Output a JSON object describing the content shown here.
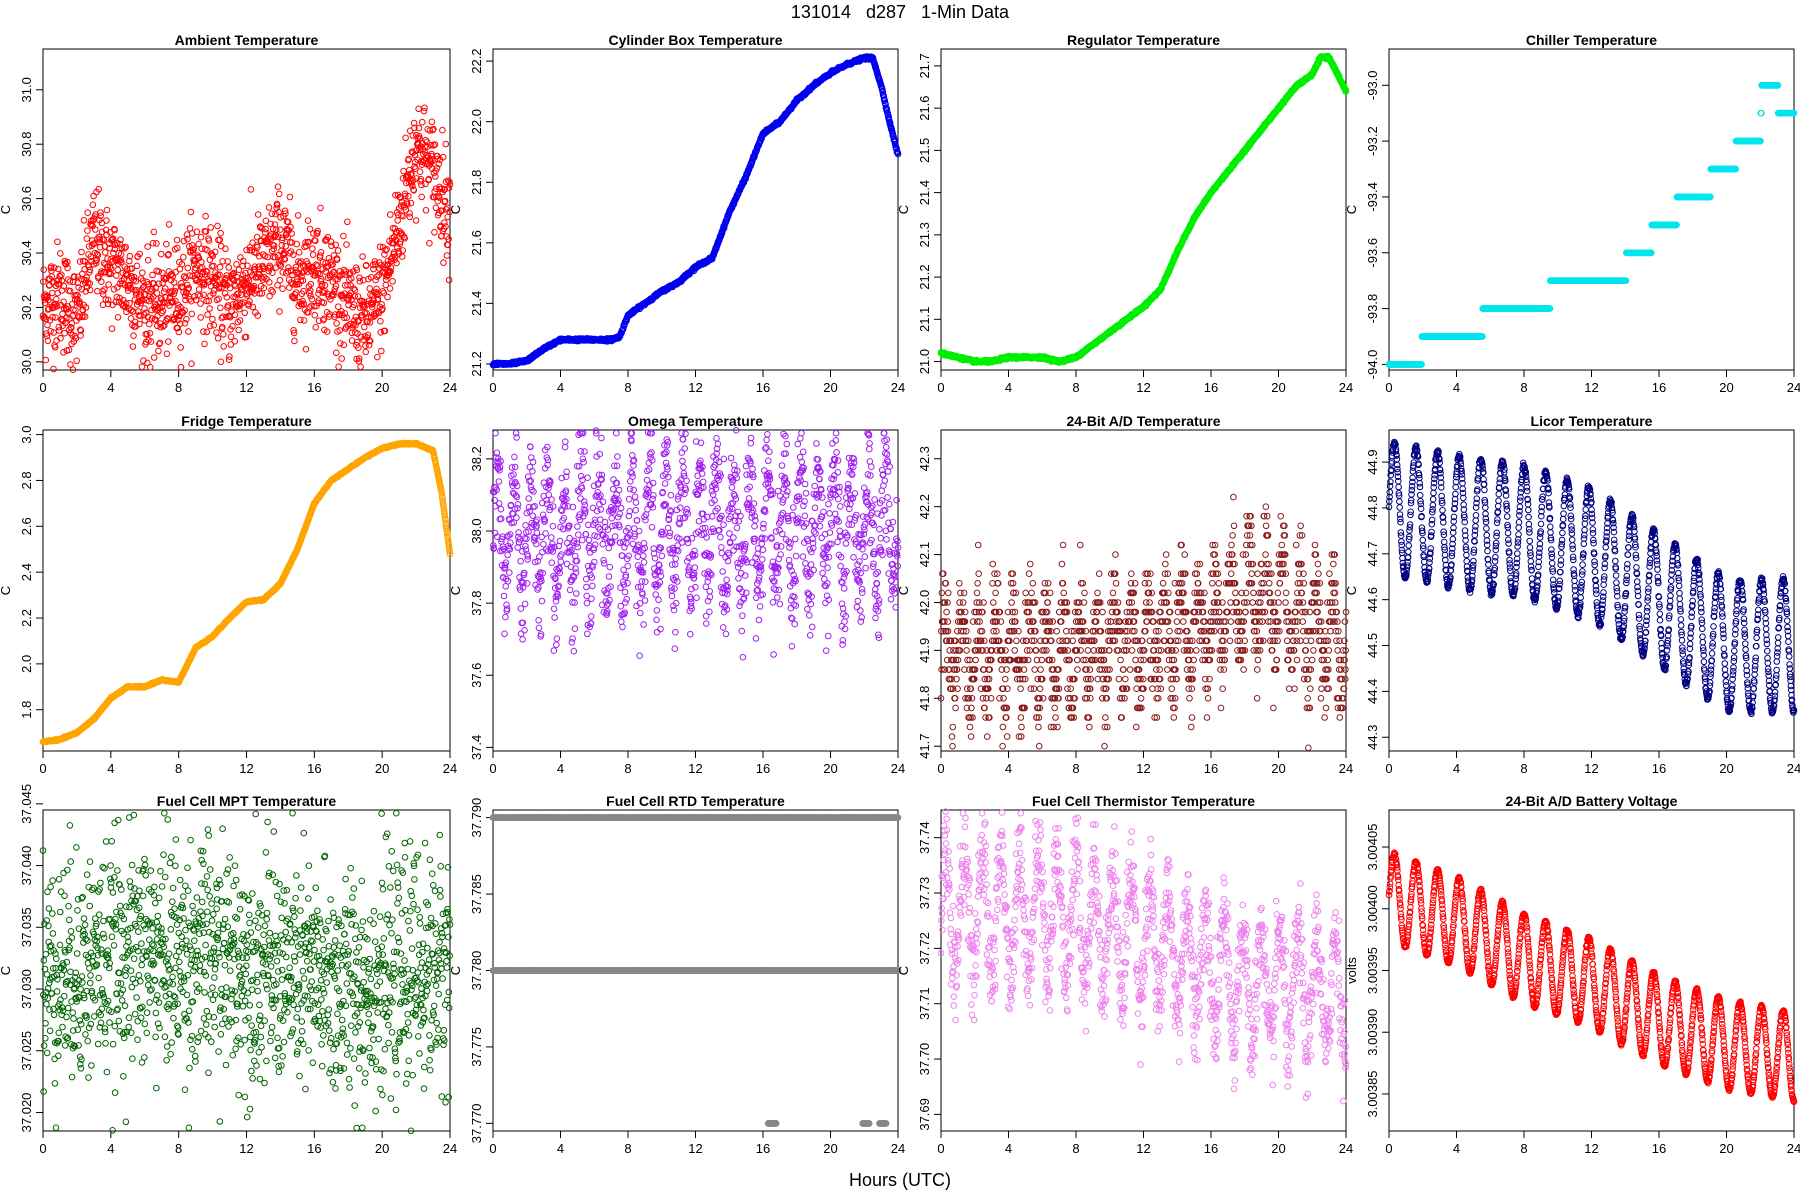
{
  "figure": {
    "title": "131014   d287   1-Min Data",
    "xlabel": "Hours (UTC)"
  },
  "chart_data": [
    {
      "type": "scatter",
      "title": "Ambient Temperature",
      "ylabel": "C",
      "color": "#ff0000",
      "xlim": [
        0,
        24
      ],
      "ylim": [
        29.97,
        31.15
      ],
      "xticks": [
        0,
        4,
        8,
        12,
        16,
        20,
        24
      ],
      "yticks": [
        30.0,
        30.2,
        30.4,
        30.6,
        30.8,
        31.0
      ],
      "ytick_decimals": 1,
      "x": [
        0,
        1,
        2,
        3,
        4,
        5,
        6,
        7,
        8,
        9,
        10,
        11,
        12,
        13,
        14,
        15,
        16,
        17,
        18,
        19,
        20,
        21,
        22,
        23,
        24
      ],
      "y": [
        30.2,
        30.25,
        30.15,
        30.45,
        30.35,
        30.3,
        30.2,
        30.22,
        30.25,
        30.35,
        30.3,
        30.2,
        30.3,
        30.35,
        30.45,
        30.3,
        30.35,
        30.3,
        30.2,
        30.15,
        30.25,
        30.5,
        30.8,
        30.7,
        30.55
      ],
      "spread": 0.28,
      "n": 1440
    },
    {
      "type": "scatter",
      "title": "Cylinder Box Temperature",
      "ylabel": "C",
      "color": "#0000ee",
      "xlim": [
        0,
        24
      ],
      "ylim": [
        21.18,
        22.24
      ],
      "xticks": [
        0,
        4,
        8,
        12,
        16,
        20,
        24
      ],
      "yticks": [
        21.2,
        21.4,
        21.6,
        21.8,
        22.0,
        22.2
      ],
      "ytick_decimals": 1,
      "x": [
        0,
        1,
        2,
        3,
        4,
        5,
        6,
        7,
        7.5,
        8,
        9,
        10,
        11,
        12,
        13,
        14,
        15,
        16,
        17,
        18,
        19,
        20,
        21,
        22,
        22.5,
        23,
        23.5,
        24
      ],
      "y": [
        21.2,
        21.2,
        21.21,
        21.25,
        21.28,
        21.28,
        21.28,
        21.28,
        21.29,
        21.36,
        21.4,
        21.44,
        21.47,
        21.52,
        21.55,
        21.7,
        21.82,
        21.96,
        22.0,
        22.07,
        22.12,
        22.16,
        22.19,
        22.21,
        22.21,
        22.12,
        22.0,
        21.89
      ],
      "spread": 0.006,
      "n": 1440
    },
    {
      "type": "scatter",
      "title": "Regulator Temperature",
      "ylabel": "C",
      "color": "#00ee00",
      "xlim": [
        0,
        24
      ],
      "ylim": [
        20.98,
        21.74
      ],
      "xticks": [
        0,
        4,
        8,
        12,
        16,
        20,
        24
      ],
      "yticks": [
        21.0,
        21.1,
        21.2,
        21.3,
        21.4,
        21.5,
        21.6,
        21.7
      ],
      "ytick_decimals": 1,
      "x": [
        0,
        1,
        2,
        3,
        4,
        5,
        6,
        7,
        8,
        9,
        10,
        11,
        12,
        13,
        14,
        15,
        16,
        17,
        18,
        19,
        20,
        21,
        22,
        22.5,
        23,
        23.5,
        24
      ],
      "y": [
        21.02,
        21.01,
        21.0,
        21.0,
        21.01,
        21.01,
        21.01,
        21.0,
        21.01,
        21.04,
        21.07,
        21.1,
        21.13,
        21.17,
        21.26,
        21.34,
        21.4,
        21.45,
        21.5,
        21.55,
        21.6,
        21.65,
        21.68,
        21.72,
        21.72,
        21.68,
        21.64
      ],
      "spread": 0.004,
      "n": 1440
    },
    {
      "type": "scatter",
      "title": "Chiller Temperature",
      "ylabel": "C",
      "color": "#00e5ee",
      "xlim": [
        0,
        24
      ],
      "ylim": [
        -94.02,
        -92.87
      ],
      "xticks": [
        0,
        4,
        8,
        12,
        16,
        20,
        24
      ],
      "yticks": [
        -94.0,
        -93.8,
        -93.6,
        -93.4,
        -93.2,
        -93.0
      ],
      "ytick_decimals": 1,
      "x": [
        0,
        1.9,
        2.0,
        4.0,
        4.1,
        5.5,
        5.6,
        8.0,
        8.1,
        11.0,
        11.1,
        14.0,
        14.1,
        15.5,
        15.6,
        17.0,
        17.1,
        19.0,
        19.1,
        20.5,
        20.6,
        22.0,
        22.1,
        24.0
      ],
      "y": [
        -94.0,
        -94.0,
        -93.9,
        -93.9,
        -93.9,
        -93.9,
        -93.8,
        -93.8,
        -93.8,
        -93.7,
        -93.7,
        -93.7,
        -93.6,
        -93.6,
        -93.5,
        -93.5,
        -93.4,
        -93.4,
        -93.3,
        -93.3,
        -93.2,
        -93.2,
        -93.0,
        -93.1
      ],
      "spread": 0.0,
      "quantize": 0.1,
      "n": 1440
    },
    {
      "type": "scatter",
      "title": "Fridge Temperature",
      "ylabel": "C",
      "color": "#ffa500",
      "xlim": [
        0,
        24
      ],
      "ylim": [
        1.62,
        3.02
      ],
      "xticks": [
        0,
        4,
        8,
        12,
        16,
        20,
        24
      ],
      "yticks": [
        1.8,
        2.0,
        2.2,
        2.4,
        2.6,
        2.8,
        3.0
      ],
      "ytick_decimals": 1,
      "x": [
        0,
        1,
        2,
        3,
        4,
        5,
        6,
        7,
        8,
        9,
        10,
        11,
        12,
        13,
        14,
        15,
        16,
        17,
        18,
        19,
        20,
        21,
        22,
        23,
        23.5,
        24
      ],
      "y": [
        1.66,
        1.67,
        1.7,
        1.76,
        1.85,
        1.9,
        1.9,
        1.93,
        1.92,
        2.07,
        2.12,
        2.2,
        2.27,
        2.28,
        2.35,
        2.5,
        2.7,
        2.8,
        2.85,
        2.9,
        2.94,
        2.96,
        2.96,
        2.93,
        2.75,
        2.48
      ],
      "spread": 0.004,
      "n": 1440
    },
    {
      "type": "scatter",
      "title": "Omega Temperature",
      "ylabel": "C",
      "color": "#a020f0",
      "xlim": [
        0,
        24
      ],
      "ylim": [
        37.39,
        38.28
      ],
      "xticks": [
        0,
        4,
        8,
        12,
        16,
        20,
        24
      ],
      "yticks": [
        37.4,
        37.6,
        37.8,
        38.0,
        38.2
      ],
      "ytick_decimals": 1,
      "x": [
        0,
        6,
        12,
        18,
        24
      ],
      "y": [
        37.98,
        37.99,
        38.0,
        38.0,
        38.0
      ],
      "spread": 0.23,
      "wave_amp": 0.18,
      "wave_period": 1.0,
      "n": 1440
    },
    {
      "type": "scatter",
      "title": "24-Bit A/D Temperature",
      "ylabel": "C",
      "color": "#8b1a1a",
      "xlim": [
        0,
        24
      ],
      "ylim": [
        41.69,
        42.36
      ],
      "xticks": [
        0,
        4,
        8,
        12,
        16,
        20,
        24
      ],
      "yticks": [
        41.7,
        41.8,
        41.9,
        42.0,
        42.1,
        42.2,
        42.3
      ],
      "ytick_decimals": 1,
      "x": [
        0,
        6,
        12,
        16,
        18,
        20,
        22,
        24
      ],
      "y": [
        41.9,
        41.9,
        41.92,
        41.95,
        42.0,
        42.0,
        41.95,
        41.92
      ],
      "spread": 0.16,
      "wave_amp": 0.1,
      "wave_period": 1.0,
      "quantize": 0.02,
      "n": 1440
    },
    {
      "type": "scatter",
      "title": "Licor Temperature",
      "ylabel": "C",
      "color": "#000080",
      "xlim": [
        0,
        24
      ],
      "ylim": [
        44.27,
        44.97
      ],
      "xticks": [
        0,
        4,
        8,
        12,
        16,
        20,
        24
      ],
      "yticks": [
        44.3,
        44.4,
        44.5,
        44.6,
        44.7,
        44.8,
        44.9
      ],
      "ytick_decimals": 1,
      "x": [
        0,
        4,
        8,
        12,
        16,
        20,
        24
      ],
      "y": [
        44.8,
        44.77,
        44.75,
        44.7,
        44.6,
        44.5,
        44.5
      ],
      "spread": 0.01,
      "wave_amp": 0.16,
      "wave_period": 1.28,
      "n": 1440
    },
    {
      "type": "scatter",
      "title": "Fuel Cell MPT Temperature",
      "ylabel": "C",
      "color": "#006400",
      "xlim": [
        0,
        24
      ],
      "ylim": [
        37.0185,
        37.0445
      ],
      "xticks": [
        0,
        4,
        8,
        12,
        16,
        20,
        24
      ],
      "yticks": [
        37.02,
        37.025,
        37.03,
        37.035,
        37.04,
        37.045
      ],
      "ytick_decimals": 3,
      "x": [
        0,
        6,
        12,
        18,
        24
      ],
      "y": [
        37.031,
        37.033,
        37.032,
        37.03,
        37.032
      ],
      "spread": 0.013,
      "n": 1440
    },
    {
      "type": "scatter",
      "title": "Fuel Cell RTD Temperature",
      "ylabel": "C",
      "color": "#888888",
      "xlim": [
        0,
        24
      ],
      "ylim": [
        37.7695,
        37.7905
      ],
      "xticks": [
        0,
        4,
        8,
        12,
        16,
        20,
        24
      ],
      "yticks": [
        37.77,
        37.775,
        37.78,
        37.785,
        37.79
      ],
      "ytick_decimals": 3,
      "levels": [
        37.79,
        37.78,
        37.77
      ],
      "level_segments": [
        {
          "level": 37.79,
          "x0": 0.0,
          "x1": 24.0
        },
        {
          "level": 37.78,
          "x0": 0.0,
          "x1": 24.0
        },
        {
          "level": 37.77,
          "x0": 16.3,
          "x1": 16.8
        },
        {
          "level": 37.77,
          "x0": 21.9,
          "x1": 22.3
        },
        {
          "level": 37.77,
          "x0": 22.9,
          "x1": 23.3
        }
      ],
      "n": 1440
    },
    {
      "type": "scatter",
      "title": "Fuel Cell Thermistor Temperature",
      "ylabel": "C",
      "color": "#ee82ee",
      "xlim": [
        0,
        24
      ],
      "ylim": [
        37.687,
        37.745
      ],
      "xticks": [
        0,
        4,
        8,
        12,
        16,
        20,
        24
      ],
      "yticks": [
        37.69,
        37.7,
        37.71,
        37.72,
        37.73,
        37.74
      ],
      "ytick_decimals": 2,
      "x": [
        0,
        6,
        12,
        18,
        24
      ],
      "y": [
        37.726,
        37.727,
        37.722,
        37.713,
        37.712
      ],
      "spread": 0.012,
      "wave_amp": 0.012,
      "wave_period": 1.1,
      "n": 1440
    },
    {
      "type": "scatter",
      "title": "24-Bit A/D Battery Voltage",
      "ylabel": "volts",
      "color": "#ff0000",
      "xlim": [
        0,
        24
      ],
      "ylim": [
        3.00382,
        3.00408
      ],
      "xticks": [
        0,
        4,
        8,
        12,
        16,
        20,
        24
      ],
      "yticks": [
        3.00385,
        3.0039,
        3.00395,
        3.004,
        3.00405
      ],
      "ytick_decimals": 5,
      "x": [
        0,
        4,
        8,
        12,
        16,
        20,
        24
      ],
      "y": [
        3.00401,
        3.00399,
        3.00396,
        3.00394,
        3.00391,
        3.00389,
        3.00388
      ],
      "spread": 2e-06,
      "wave_amp": 4e-05,
      "wave_period": 1.28,
      "n": 1440
    }
  ]
}
